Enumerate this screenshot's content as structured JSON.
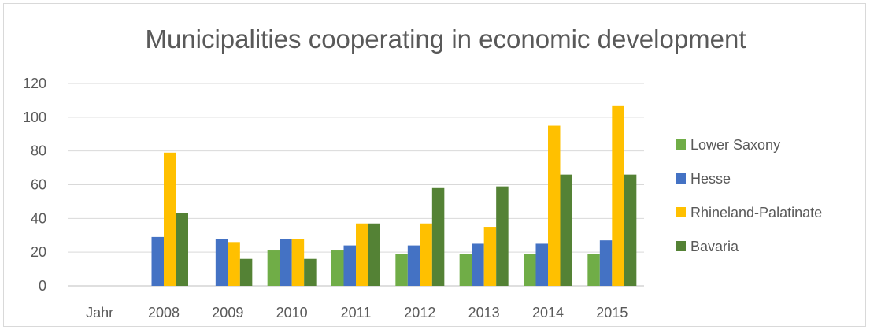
{
  "chart_data": {
    "type": "bar",
    "title": "Municipalities cooperating in economic development",
    "xlabel": "",
    "ylabel": "",
    "categories": [
      "Jahr",
      "2008",
      "2009",
      "2010",
      "2011",
      "2012",
      "2013",
      "2014",
      "2015"
    ],
    "y_ticks": [
      "0",
      "20",
      "40",
      "60",
      "80",
      "100",
      "120"
    ],
    "ylim": [
      0,
      120
    ],
    "grid": "horizontal",
    "legend_position": "right",
    "series": [
      {
        "name": "Lower Saxony",
        "color": "#70ad47",
        "values": [
          null,
          null,
          null,
          21,
          21,
          19,
          19,
          19,
          19
        ]
      },
      {
        "name": "Hesse",
        "color": "#4472c4",
        "values": [
          null,
          29,
          28,
          28,
          24,
          24,
          25,
          25,
          27
        ]
      },
      {
        "name": "Rhineland-Palatinate",
        "color": "#ffc000",
        "values": [
          null,
          79,
          26,
          28,
          37,
          37,
          35,
          95,
          107
        ]
      },
      {
        "name": "Bavaria",
        "color": "#548235",
        "values": [
          null,
          43,
          16,
          16,
          37,
          58,
          59,
          66,
          66
        ]
      }
    ]
  }
}
